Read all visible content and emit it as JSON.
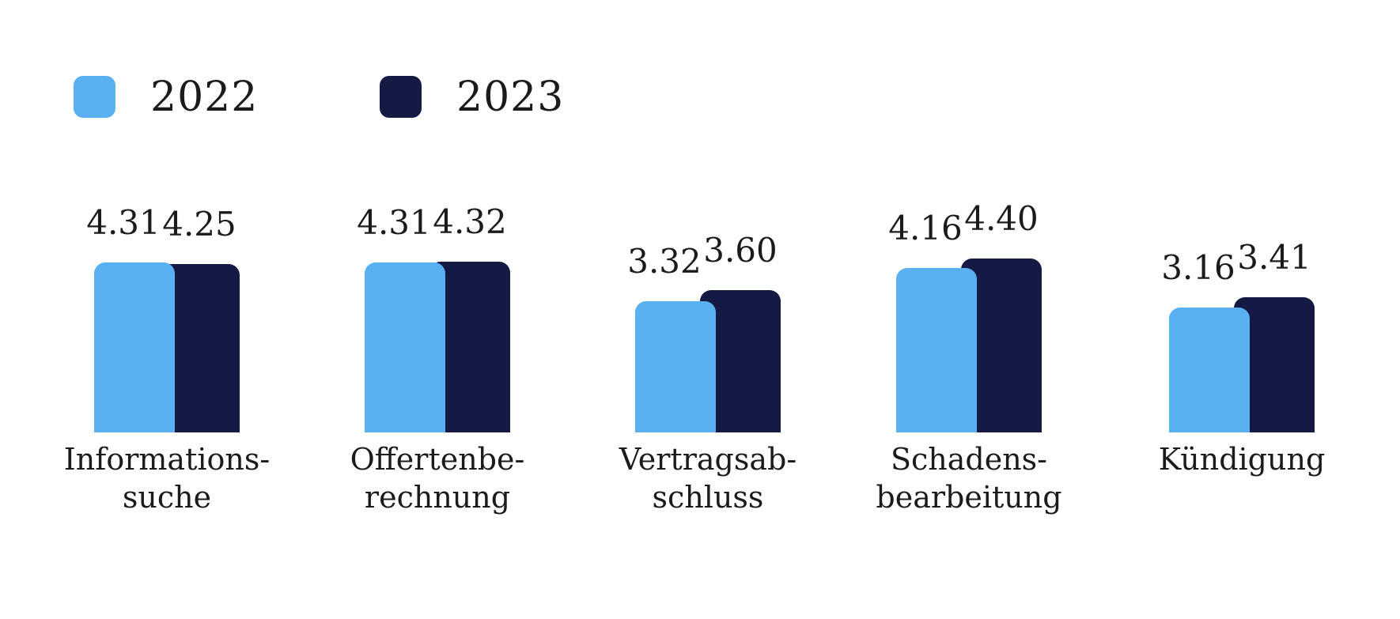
{
  "legend": {
    "items": [
      {
        "label": "2022",
        "color": "#5AB1F1"
      },
      {
        "label": "2023",
        "color": "#151A44"
      }
    ]
  },
  "chart_data": {
    "type": "bar",
    "categories": [
      "Informationssuche",
      "Offertenberechnung",
      "Vertragsabschluss",
      "Schadensbearbeitung",
      "Kündigung"
    ],
    "category_lines": [
      [
        "Informations-",
        "suche"
      ],
      [
        "Offertenbe-",
        "rechnung"
      ],
      [
        "Vertragsab-",
        "schluss"
      ],
      [
        "Schadens-",
        "bearbeitung"
      ],
      [
        "Kündigung"
      ]
    ],
    "series": [
      {
        "name": "2022",
        "color": "#5AB1F1",
        "values": [
          4.31,
          4.31,
          3.32,
          4.16,
          3.16
        ]
      },
      {
        "name": "2023",
        "color": "#151A44",
        "values": [
          4.25,
          4.32,
          3.6,
          4.4,
          3.41
        ]
      }
    ],
    "value_labels": [
      [
        "4.31",
        "4.25"
      ],
      [
        "4.31",
        "4.32"
      ],
      [
        "3.32",
        "3.60"
      ],
      [
        "4.16",
        "4.40"
      ],
      [
        "3.16",
        "3.41"
      ]
    ],
    "title": "",
    "xlabel": "",
    "ylabel": "",
    "ylim": [
      0,
      5
    ],
    "grid": false,
    "legend_position": "top-left"
  },
  "colors": {
    "background": "#ffffff",
    "text": "#1b1b1b",
    "series_2022": "#5AB1F1",
    "series_2023": "#151A44"
  }
}
